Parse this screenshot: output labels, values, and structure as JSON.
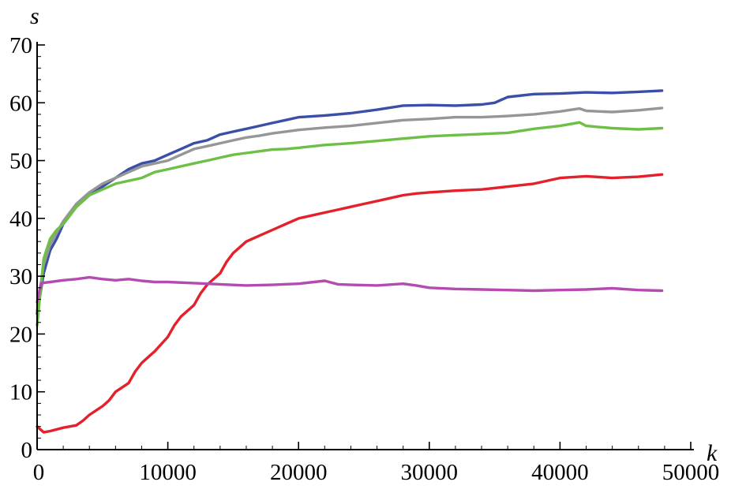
{
  "chart_data": {
    "type": "line",
    "xlabel": "k",
    "ylabel": "s",
    "xlim": [
      0,
      50000
    ],
    "ylim": [
      0,
      70
    ],
    "x_ticks": [
      0,
      10000,
      20000,
      30000,
      40000,
      50000
    ],
    "y_ticks": [
      0,
      10,
      20,
      30,
      40,
      50,
      60,
      70
    ],
    "x_tick_labels": [
      "0",
      "10000",
      "20000",
      "30000",
      "40000",
      "50000"
    ],
    "y_tick_labels": [
      "0",
      "10",
      "20",
      "30",
      "40",
      "50",
      "60",
      "70"
    ],
    "grid": false,
    "legend": "none",
    "series": [
      {
        "color": "#3b4fa8",
        "x": [
          0,
          500,
          1000,
          1500,
          2000,
          2500,
          3000,
          4000,
          5000,
          6000,
          7000,
          8000,
          9000,
          10000,
          11000,
          12000,
          13000,
          14000,
          15000,
          16000,
          17000,
          18000,
          19000,
          20000,
          22000,
          24000,
          26000,
          28000,
          30000,
          32000,
          34000,
          35000,
          36000,
          38000,
          40000,
          42000,
          44000,
          46000,
          47800
        ],
        "y": [
          23.5,
          30.5,
          34.5,
          36.5,
          39.0,
          40.5,
          42.0,
          44.0,
          45.5,
          47.0,
          48.5,
          49.5,
          50.0,
          51.0,
          52.0,
          53.0,
          53.5,
          54.5,
          55.0,
          55.5,
          56.0,
          56.5,
          57.0,
          57.5,
          57.8,
          58.2,
          58.8,
          59.5,
          59.6,
          59.5,
          59.7,
          60.0,
          61.0,
          61.5,
          61.6,
          61.8,
          61.7,
          61.9,
          62.1
        ]
      },
      {
        "color": "#969696",
        "x": [
          0,
          500,
          1000,
          1500,
          2000,
          2500,
          3000,
          4000,
          5000,
          6000,
          7000,
          8000,
          9000,
          10000,
          11000,
          12000,
          13000,
          14000,
          15000,
          16000,
          17000,
          18000,
          19000,
          20000,
          22000,
          24000,
          26000,
          28000,
          30000,
          32000,
          34000,
          36000,
          38000,
          40000,
          41500,
          42000,
          44000,
          46000,
          47800
        ],
        "y": [
          24.0,
          32.0,
          35.5,
          37.5,
          39.5,
          41.0,
          42.5,
          44.5,
          46.0,
          47.0,
          48.0,
          49.0,
          49.5,
          50.0,
          51.0,
          52.0,
          52.5,
          53.0,
          53.5,
          54.0,
          54.3,
          54.7,
          55.0,
          55.3,
          55.7,
          56.0,
          56.5,
          57.0,
          57.2,
          57.5,
          57.5,
          57.7,
          58.0,
          58.5,
          59.0,
          58.6,
          58.4,
          58.7,
          59.1
        ]
      },
      {
        "color": "#6dbf45",
        "x": [
          0,
          500,
          1000,
          1500,
          2000,
          2500,
          3000,
          4000,
          5000,
          6000,
          7000,
          8000,
          9000,
          10000,
          11000,
          12000,
          13000,
          14000,
          15000,
          16000,
          17000,
          18000,
          19000,
          20000,
          22000,
          24000,
          26000,
          28000,
          30000,
          32000,
          34000,
          36000,
          38000,
          40000,
          41500,
          42000,
          44000,
          46000,
          47800
        ],
        "y": [
          21.5,
          33.0,
          36.5,
          38.0,
          39.0,
          40.5,
          42.0,
          44.0,
          45.0,
          46.0,
          46.5,
          47.0,
          48.0,
          48.5,
          49.0,
          49.5,
          50.0,
          50.5,
          51.0,
          51.3,
          51.6,
          51.9,
          52.0,
          52.2,
          52.7,
          53.0,
          53.4,
          53.8,
          54.2,
          54.4,
          54.6,
          54.8,
          55.5,
          56.0,
          56.6,
          56.0,
          55.6,
          55.4,
          55.6
        ]
      },
      {
        "color": "#e4202a",
        "x": [
          0,
          500,
          1000,
          2000,
          3000,
          3500,
          4000,
          5000,
          5500,
          6000,
          7000,
          7500,
          8000,
          8500,
          9000,
          10000,
          10500,
          11000,
          12000,
          12500,
          13000,
          14000,
          14500,
          15000,
          16000,
          17000,
          18000,
          19000,
          20000,
          21000,
          22000,
          23000,
          24000,
          25000,
          26000,
          27000,
          28000,
          29000,
          30000,
          32000,
          34000,
          36000,
          38000,
          40000,
          42000,
          44000,
          46000,
          47800
        ],
        "y": [
          4.0,
          3.0,
          3.2,
          3.8,
          4.2,
          5.0,
          6.0,
          7.5,
          8.5,
          10.0,
          11.5,
          13.5,
          15.0,
          16.0,
          17.0,
          19.5,
          21.5,
          23.0,
          25.0,
          27.0,
          28.5,
          30.5,
          32.5,
          34.0,
          36.0,
          37.0,
          38.0,
          39.0,
          40.0,
          40.5,
          41.0,
          41.5,
          42.0,
          42.5,
          43.0,
          43.5,
          44.0,
          44.3,
          44.5,
          44.8,
          45.0,
          45.5,
          46.0,
          47.0,
          47.3,
          47.0,
          47.2,
          47.6
        ]
      },
      {
        "color": "#b44bb0",
        "x": [
          0,
          300,
          1000,
          2000,
          3000,
          4000,
          5000,
          6000,
          7000,
          8000,
          9000,
          10000,
          12000,
          14000,
          16000,
          18000,
          20000,
          22000,
          23000,
          24000,
          26000,
          28000,
          29000,
          30000,
          32000,
          34000,
          36000,
          38000,
          40000,
          42000,
          44000,
          46000,
          47800
        ],
        "y": [
          25.5,
          28.8,
          29.0,
          29.3,
          29.5,
          29.8,
          29.5,
          29.3,
          29.5,
          29.2,
          29.0,
          29.0,
          28.8,
          28.6,
          28.4,
          28.5,
          28.7,
          29.2,
          28.6,
          28.5,
          28.4,
          28.7,
          28.4,
          28.0,
          27.8,
          27.7,
          27.6,
          27.5,
          27.6,
          27.7,
          27.9,
          27.6,
          27.5
        ]
      }
    ]
  }
}
